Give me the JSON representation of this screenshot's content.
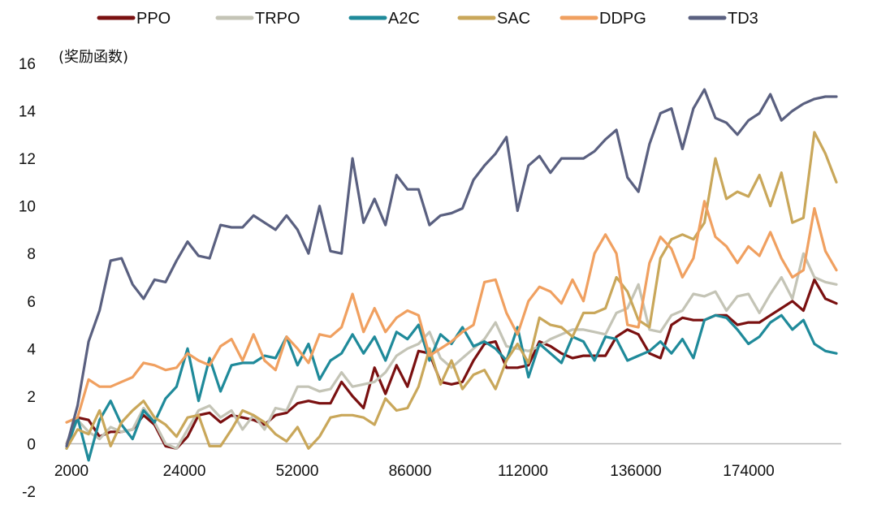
{
  "chart_data": {
    "type": "line",
    "title": "",
    "xlabel": "",
    "ylabel": "(奖励函数)",
    "ylim": [
      -2,
      16
    ],
    "yticks": [
      -2,
      0,
      2,
      4,
      6,
      8,
      10,
      12,
      14,
      16
    ],
    "xtick_labels": [
      "2000",
      "24000",
      "52000",
      "86000",
      "112000",
      "136000",
      "174000"
    ],
    "grid": false,
    "legend_position": "top",
    "series": [
      {
        "name": "PPO",
        "color": "#7a1010",
        "values": [
          0,
          1.1,
          1.0,
          0.3,
          0.5,
          0.5,
          0.6,
          1.2,
          0.8,
          -0.1,
          -0.2,
          0.3,
          1.2,
          1.3,
          0.9,
          1.2,
          1.1,
          1.0,
          0.8,
          1.2,
          1.3,
          1.7,
          1.8,
          1.7,
          1.7,
          2.6,
          2.0,
          1.5,
          3.2,
          2.1,
          3.3,
          2.4,
          3.9,
          3.8,
          2.6,
          2.5,
          2.6,
          3.5,
          4.2,
          4.3,
          3.2,
          3.2,
          3.3,
          4.3,
          4.1,
          3.8,
          3.6,
          3.7,
          3.7,
          3.7,
          4.5,
          4.8,
          4.6,
          3.8,
          3.6,
          5.0,
          5.3,
          5.2,
          5.2,
          5.4,
          5.4,
          5.0,
          5.1,
          5.1,
          5.4,
          5.7,
          6.0,
          5.6,
          6.9,
          6.1,
          5.9
        ]
      },
      {
        "name": "TRPO",
        "color": "#c4c4b6",
        "values": [
          0,
          1.0,
          0.5,
          0.2,
          0.7,
          0.5,
          0.6,
          1.5,
          0.9,
          0.0,
          -0.2,
          0.6,
          1.4,
          1.6,
          1.1,
          1.4,
          0.6,
          1.2,
          0.6,
          1.5,
          1.4,
          2.4,
          2.4,
          2.2,
          2.3,
          3.0,
          2.4,
          2.5,
          2.6,
          3.0,
          3.7,
          4.0,
          4.2,
          4.7,
          3.6,
          3.2,
          3.6,
          4.0,
          4.4,
          5.1,
          4.1,
          4.0,
          3.9,
          4.1,
          4.4,
          4.6,
          4.8,
          4.8,
          4.7,
          4.6,
          5.5,
          5.7,
          6.7,
          4.8,
          4.7,
          5.4,
          5.6,
          6.3,
          6.2,
          6.4,
          5.6,
          6.2,
          6.3,
          5.5,
          6.3,
          7.0,
          6.1,
          8.0,
          7.0,
          6.8,
          6.7
        ]
      },
      {
        "name": "A2C",
        "color": "#1f8a9a",
        "values": [
          -0.2,
          1.1,
          -0.7,
          1.0,
          1.8,
          0.8,
          0.2,
          1.4,
          0.9,
          1.9,
          2.4,
          4.0,
          1.8,
          3.6,
          2.2,
          3.3,
          3.4,
          3.4,
          3.7,
          3.6,
          4.5,
          3.3,
          4.2,
          2.7,
          3.5,
          3.8,
          4.6,
          3.8,
          4.5,
          3.5,
          4.7,
          4.4,
          5.0,
          3.5,
          4.6,
          4.2,
          4.9,
          4.1,
          4.3,
          4.0,
          3.5,
          4.9,
          2.8,
          4.2,
          3.8,
          3.4,
          4.5,
          4.3,
          3.5,
          4.5,
          4.4,
          3.5,
          3.7,
          3.9,
          4.3,
          3.8,
          4.4,
          3.6,
          5.2,
          5.4,
          5.3,
          4.8,
          4.2,
          4.5,
          5.1,
          5.4,
          4.8,
          5.2,
          4.2,
          3.9,
          3.8
        ]
      },
      {
        "name": "SAC",
        "color": "#c9a75a",
        "values": [
          -0.2,
          0.6,
          0.4,
          1.4,
          -0.1,
          0.9,
          1.4,
          1.8,
          1.1,
          0.8,
          0.3,
          1.1,
          1.2,
          -0.1,
          -0.1,
          0.6,
          1.4,
          1.2,
          0.9,
          0.4,
          0.1,
          0.7,
          -0.2,
          0.3,
          1.1,
          1.2,
          1.2,
          1.1,
          0.8,
          1.9,
          1.4,
          1.5,
          2.4,
          4.0,
          2.5,
          3.5,
          2.3,
          2.9,
          3.1,
          2.3,
          3.5,
          4.2,
          3.4,
          5.3,
          5.0,
          4.9,
          4.5,
          5.5,
          5.5,
          5.7,
          7.0,
          6.4,
          5.2,
          4.9,
          7.8,
          8.6,
          8.8,
          8.6,
          9.3,
          12.0,
          10.3,
          10.6,
          10.4,
          11.3,
          10.0,
          11.4,
          9.3,
          9.5,
          13.1,
          12.2,
          11.0
        ]
      },
      {
        "name": "DDPG",
        "color": "#f0a060",
        "values": [
          0.9,
          1.1,
          2.7,
          2.4,
          2.4,
          2.6,
          2.8,
          3.4,
          3.3,
          3.1,
          3.2,
          3.8,
          3.5,
          3.3,
          4.1,
          4.4,
          3.5,
          4.6,
          3.5,
          3.1,
          4.5,
          4.0,
          3.4,
          4.6,
          4.5,
          4.9,
          6.3,
          4.7,
          5.7,
          4.7,
          5.3,
          5.6,
          5.4,
          3.7,
          4.0,
          4.3,
          4.7,
          5.0,
          6.8,
          6.9,
          5.5,
          4.6,
          6.0,
          6.6,
          6.4,
          5.9,
          6.9,
          6.0,
          8.0,
          8.8,
          8.0,
          5.0,
          4.9,
          7.6,
          8.7,
          8.2,
          7.0,
          7.8,
          10.2,
          8.7,
          8.3,
          7.6,
          8.3,
          7.9,
          8.9,
          7.8,
          7.0,
          7.3,
          9.9,
          8.1,
          7.3
        ]
      },
      {
        "name": "TD3",
        "color": "#5a6080",
        "values": [
          -0.1,
          1.6,
          4.3,
          5.6,
          7.7,
          7.8,
          6.7,
          6.1,
          6.9,
          6.8,
          7.7,
          8.5,
          7.9,
          7.8,
          9.2,
          9.1,
          9.1,
          9.6,
          9.3,
          9.0,
          9.6,
          9.0,
          8.0,
          10.0,
          8.1,
          8.0,
          12.0,
          9.3,
          10.3,
          9.2,
          11.3,
          10.7,
          10.7,
          9.2,
          9.6,
          9.7,
          9.9,
          11.1,
          11.7,
          12.2,
          12.9,
          9.8,
          11.7,
          12.1,
          11.4,
          12.0,
          12.0,
          12.0,
          12.3,
          12.8,
          13.2,
          11.2,
          10.6,
          12.6,
          13.9,
          14.1,
          12.4,
          14.1,
          14.9,
          13.7,
          13.5,
          13.0,
          13.6,
          13.9,
          14.7,
          13.6,
          14.0,
          14.3,
          14.5,
          14.6,
          14.6
        ]
      }
    ]
  }
}
